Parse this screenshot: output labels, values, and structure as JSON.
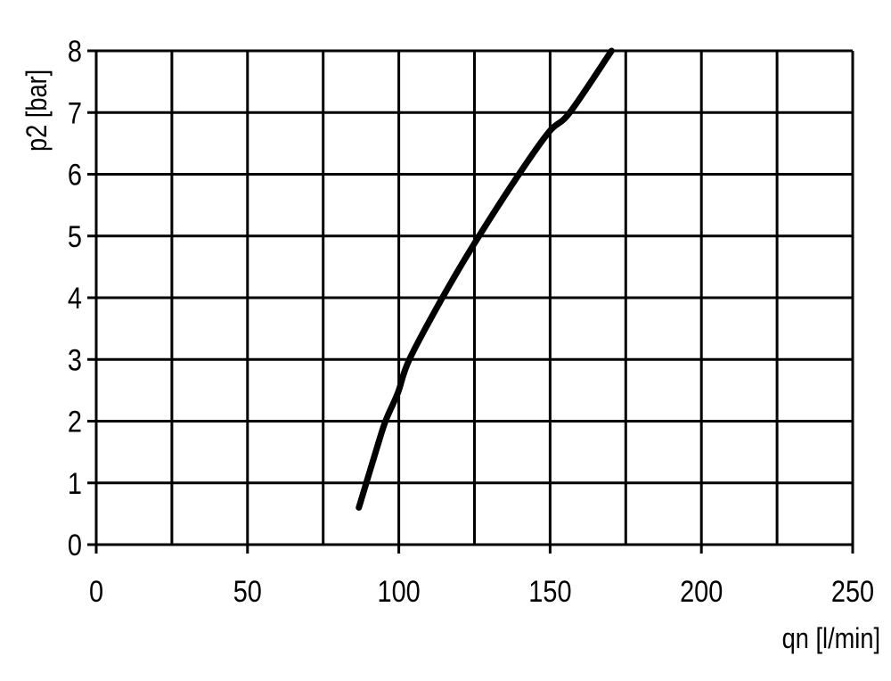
{
  "chart_data": {
    "type": "line",
    "title": "",
    "xlabel": "qn [l/min]",
    "ylabel": "p2 [bar]",
    "xlim": [
      0,
      250
    ],
    "ylim": [
      0,
      8
    ],
    "xticks": [
      0,
      50,
      100,
      150,
      200,
      250
    ],
    "yticks": [
      0,
      1,
      2,
      3,
      4,
      5,
      6,
      7,
      8
    ],
    "xtick_labels": [
      "0",
      "50",
      "100",
      "150",
      "200",
      "250"
    ],
    "ytick_labels": [
      "0",
      "1",
      "2",
      "3",
      "4",
      "5",
      "6",
      "7",
      "8"
    ],
    "x_grid_step": 25,
    "y_grid_step": 1,
    "grid": true,
    "line_color": "#000000",
    "series": [
      {
        "x": [
          86.8,
          92.6,
          95.6,
          99.7,
          103.5,
          114.4,
          125.0,
          139.7,
          149.7,
          156.5,
          170.3
        ],
        "y": [
          0.6,
          1.54,
          2.0,
          2.46,
          3.0,
          4.0,
          4.88,
          6.0,
          6.69,
          7.0,
          8.0
        ]
      }
    ]
  }
}
